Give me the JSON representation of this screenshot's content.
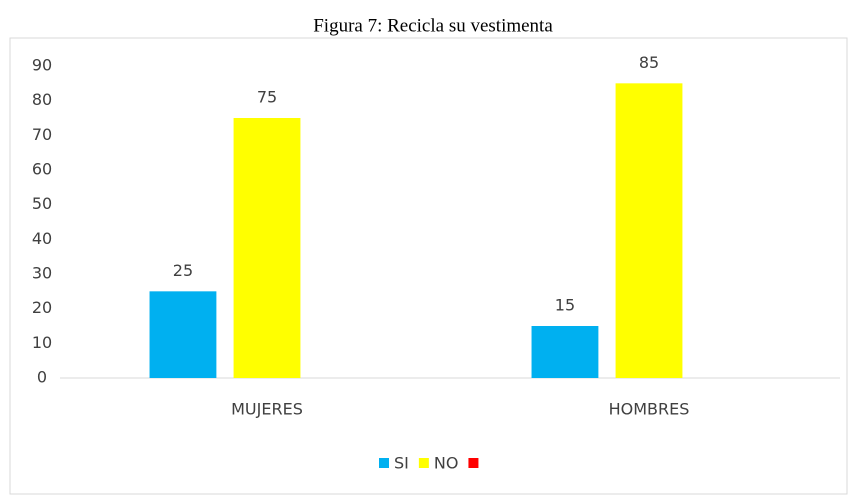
{
  "chart_data": {
    "type": "bar",
    "title": "Figura 7:  Recicla su vestimenta",
    "categories": [
      "MUJERES",
      "HOMBRES"
    ],
    "series": [
      {
        "name": "SI",
        "color": "#00b0f0",
        "values": [
          25,
          15
        ]
      },
      {
        "name": "NO",
        "color": "#ffff00",
        "values": [
          75,
          85
        ]
      },
      {
        "color": "#ff0000",
        "values": [
          null,
          null
        ]
      }
    ],
    "ylim": [
      0,
      90
    ],
    "yticks": [
      0,
      10,
      20,
      30,
      40,
      50,
      60,
      70,
      80,
      90
    ],
    "grid": false,
    "legend": "bottom"
  }
}
